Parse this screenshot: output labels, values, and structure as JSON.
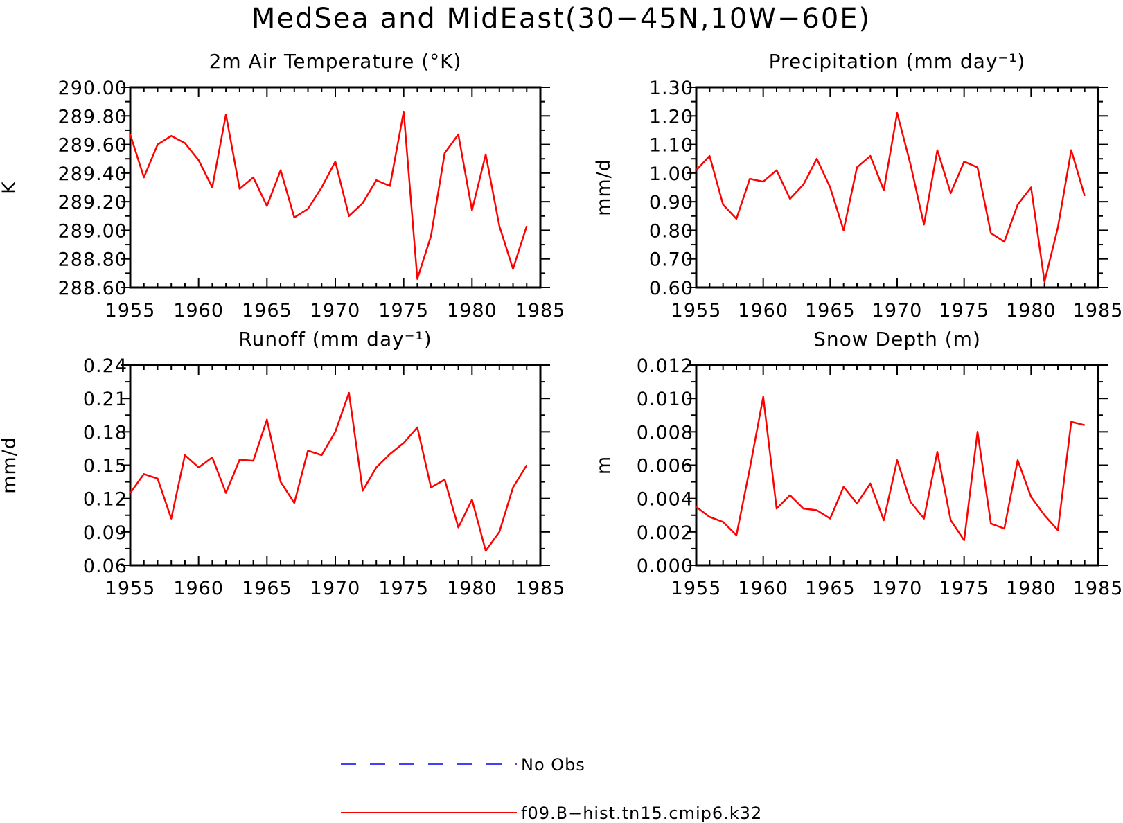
{
  "figure": {
    "title": "MedSea and MidEast(30−45N,10W−60E)"
  },
  "legend": [
    {
      "label": "No Obs",
      "color": "#0000ff",
      "dash": true
    },
    {
      "label": "f09.B−hist.tn15.cmip6.k32",
      "color": "#ff0000",
      "dash": false
    }
  ],
  "chart_data": [
    {
      "type": "line",
      "title": "2m Air Temperature (°K)",
      "ylabel": "K",
      "xlabel": "",
      "xlim": [
        1955,
        1985
      ],
      "ylim": [
        288.6,
        290.0
      ],
      "xticks": [
        "1955",
        "1960",
        "1965",
        "1970",
        "1975",
        "1980",
        "1985"
      ],
      "yticks": [
        "290.00",
        "289.80",
        "289.60",
        "289.40",
        "289.20",
        "289.00",
        "288.80",
        "288.60"
      ],
      "x": [
        1955,
        1956,
        1957,
        1958,
        1959,
        1960,
        1961,
        1962,
        1963,
        1964,
        1965,
        1966,
        1967,
        1968,
        1969,
        1970,
        1971,
        1972,
        1973,
        1974,
        1975,
        1976,
        1977,
        1978,
        1979,
        1980,
        1981,
        1982,
        1983,
        1984
      ],
      "series": [
        {
          "values": [
            289.67,
            289.37,
            289.6,
            289.66,
            289.61,
            289.49,
            289.3,
            289.81,
            289.29,
            289.37,
            289.17,
            289.42,
            289.09,
            289.15,
            289.3,
            289.48,
            289.1,
            289.19,
            289.35,
            289.31,
            289.83,
            288.66,
            288.96,
            289.54,
            289.67,
            289.14,
            289.53,
            289.03,
            288.73,
            289.03
          ]
        }
      ]
    },
    {
      "type": "line",
      "title": "Precipitation (mm day⁻¹)",
      "ylabel": "mm/d",
      "xlabel": "",
      "xlim": [
        1955,
        1985
      ],
      "ylim": [
        0.6,
        1.3
      ],
      "xticks": [
        "1955",
        "1960",
        "1965",
        "1970",
        "1975",
        "1980",
        "1985"
      ],
      "yticks": [
        "1.30",
        "1.20",
        "1.10",
        "1.00",
        "0.90",
        "0.80",
        "0.70",
        "0.60"
      ],
      "x": [
        1955,
        1956,
        1957,
        1958,
        1959,
        1960,
        1961,
        1962,
        1963,
        1964,
        1965,
        1966,
        1967,
        1968,
        1969,
        1970,
        1971,
        1972,
        1973,
        1974,
        1975,
        1976,
        1977,
        1978,
        1979,
        1980,
        1981,
        1982,
        1983,
        1984
      ],
      "series": [
        {
          "values": [
            1.01,
            1.06,
            0.89,
            0.84,
            0.98,
            0.97,
            1.01,
            0.91,
            0.96,
            1.05,
            0.95,
            0.8,
            1.02,
            1.06,
            0.94,
            1.21,
            1.03,
            0.82,
            1.08,
            0.93,
            1.04,
            1.02,
            0.79,
            0.76,
            0.89,
            0.95,
            0.62,
            0.81,
            1.08,
            0.92
          ]
        }
      ]
    },
    {
      "type": "line",
      "title": "Runoff (mm day⁻¹)",
      "ylabel": "mm/d",
      "xlabel": "",
      "xlim": [
        1955,
        1985
      ],
      "ylim": [
        0.06,
        0.24
      ],
      "xticks": [
        "1955",
        "1960",
        "1965",
        "1970",
        "1975",
        "1980",
        "1985"
      ],
      "yticks": [
        "0.24",
        "0.21",
        "0.18",
        "0.15",
        "0.12",
        "0.09",
        "0.06"
      ],
      "x": [
        1955,
        1956,
        1957,
        1958,
        1959,
        1960,
        1961,
        1962,
        1963,
        1964,
        1965,
        1966,
        1967,
        1968,
        1969,
        1970,
        1971,
        1972,
        1973,
        1974,
        1975,
        1976,
        1977,
        1978,
        1979,
        1980,
        1981,
        1982,
        1983,
        1984
      ],
      "series": [
        {
          "values": [
            0.125,
            0.142,
            0.138,
            0.102,
            0.159,
            0.148,
            0.157,
            0.125,
            0.155,
            0.154,
            0.191,
            0.135,
            0.116,
            0.163,
            0.159,
            0.18,
            0.215,
            0.127,
            0.148,
            0.16,
            0.17,
            0.184,
            0.13,
            0.137,
            0.094,
            0.119,
            0.073,
            0.09,
            0.13,
            0.15
          ]
        }
      ]
    },
    {
      "type": "line",
      "title": "Snow Depth (m)",
      "ylabel": "m",
      "xlabel": "",
      "xlim": [
        1955,
        1985
      ],
      "ylim": [
        0.0,
        0.012
      ],
      "xticks": [
        "1955",
        "1960",
        "1965",
        "1970",
        "1975",
        "1980",
        "1985"
      ],
      "yticks": [
        "0.012",
        "0.010",
        "0.008",
        "0.006",
        "0.004",
        "0.002",
        "0.000"
      ],
      "x": [
        1955,
        1956,
        1957,
        1958,
        1959,
        1960,
        1961,
        1962,
        1963,
        1964,
        1965,
        1966,
        1967,
        1968,
        1969,
        1970,
        1971,
        1972,
        1973,
        1974,
        1975,
        1976,
        1977,
        1978,
        1979,
        1980,
        1981,
        1982,
        1983,
        1984
      ],
      "series": [
        {
          "values": [
            0.0035,
            0.0029,
            0.0026,
            0.0018,
            0.0058,
            0.0101,
            0.0034,
            0.0042,
            0.0034,
            0.0033,
            0.0028,
            0.0047,
            0.0037,
            0.0049,
            0.0027,
            0.0063,
            0.0038,
            0.0028,
            0.0068,
            0.0027,
            0.0015,
            0.008,
            0.0025,
            0.0022,
            0.0063,
            0.0041,
            0.003,
            0.0021,
            0.0086,
            0.0084
          ]
        }
      ]
    }
  ]
}
